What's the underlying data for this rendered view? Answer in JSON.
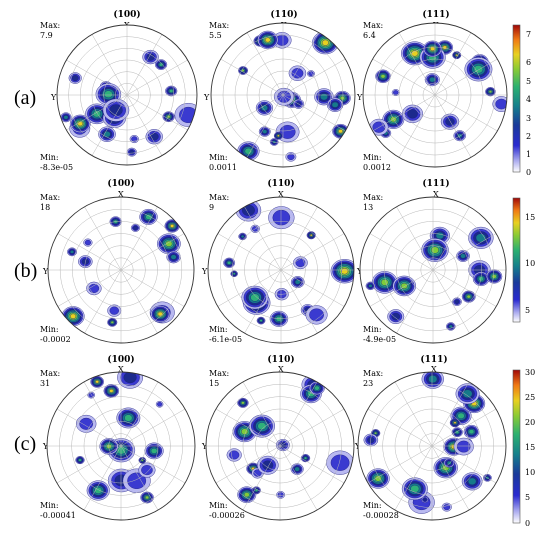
{
  "rows": [
    {
      "label": "(a)",
      "panels": [
        {
          "title": "(100)",
          "max_label": "Max:",
          "max": "7.9",
          "min_label": "Min:",
          "min": "-8.3e-05",
          "x_axis": "X",
          "y_axis": "Y"
        },
        {
          "title": "(110)",
          "max_label": "Max:",
          "max": "5.5",
          "min_label": "Min:",
          "min": "0.0011",
          "x_axis": "X",
          "y_axis": "Y"
        },
        {
          "title": "(111)",
          "max_label": "Max:",
          "max": "6.4",
          "min_label": "Min:",
          "min": "0.0012",
          "x_axis": "X",
          "y_axis": "Y"
        }
      ],
      "colorbar": {
        "ticks": [
          "7",
          "6",
          "5",
          "4",
          "3",
          "2",
          "1",
          "0"
        ]
      }
    },
    {
      "label": "(b)",
      "panels": [
        {
          "title": "(100)",
          "max_label": "Max:",
          "max": "18",
          "min_label": "Min:",
          "min": "-0.0002",
          "x_axis": "X",
          "y_axis": "Y"
        },
        {
          "title": "(110)",
          "max_label": "Max:",
          "max": "9",
          "min_label": "Min:",
          "min": "-6.1e-05",
          "x_axis": "X",
          "y_axis": "Y"
        },
        {
          "title": "(111)",
          "max_label": "Max:",
          "max": "13",
          "min_label": "Min:",
          "min": "-4.9e-05",
          "x_axis": "X",
          "y_axis": "Y"
        }
      ],
      "colorbar": {
        "ticks": [
          "15",
          "10",
          "5"
        ]
      }
    },
    {
      "label": "(c)",
      "panels": [
        {
          "title": "(100)",
          "max_label": "Max:",
          "max": "31",
          "min_label": "Min:",
          "min": "-0.00041",
          "x_axis": "X",
          "y_axis": "Y"
        },
        {
          "title": "(110)",
          "max_label": "Max:",
          "max": "15",
          "min_label": "Min:",
          "min": "-0.00026",
          "x_axis": "X",
          "y_axis": "Y"
        },
        {
          "title": "(111)",
          "max_label": "Max:",
          "max": "23",
          "min_label": "Min:",
          "min": "-0.00028",
          "x_axis": "X",
          "y_axis": "Y"
        }
      ],
      "colorbar": {
        "ticks": [
          "30",
          "25",
          "20",
          "15",
          "10",
          "5",
          "0"
        ]
      }
    }
  ],
  "colormap": [
    "#ffffff",
    "#b9b9f0",
    "#3a3ad0",
    "#1c2a8c",
    "#167a8a",
    "#2fb07a",
    "#7fcc3a",
    "#e8d020",
    "#f08a18",
    "#d42010",
    "#7a0000"
  ]
}
